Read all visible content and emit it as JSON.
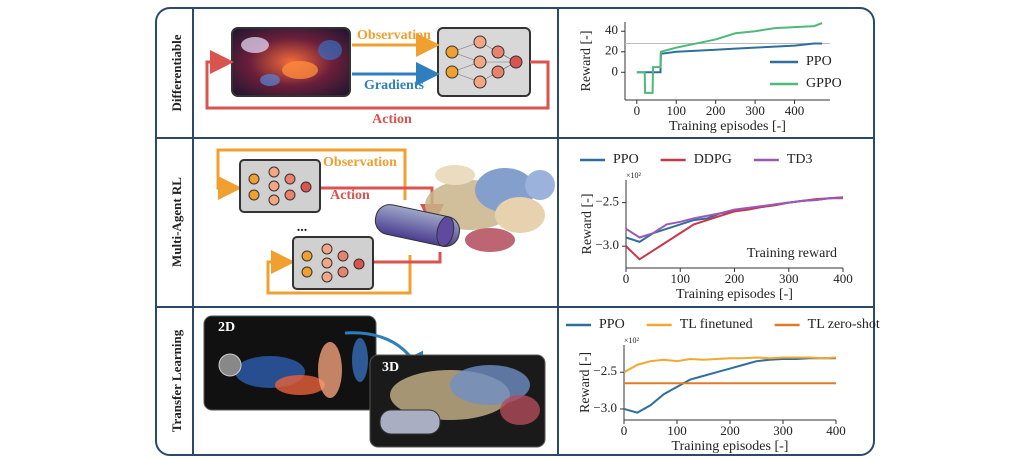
{
  "row_labels": [
    "Differentiable",
    "Multi-Agent RL",
    "Transfer Learning"
  ],
  "diagrams": {
    "differentiable": {
      "observation": "Observation",
      "gradients": "Gradients",
      "action": "Action"
    },
    "multi_agent": {
      "observation": "Observation",
      "action": "Action",
      "ellipsis": "..."
    },
    "transfer": {
      "source": "2D",
      "target": "3D"
    }
  },
  "chart_data": [
    {
      "type": "line",
      "xlabel": "Training episodes [-]",
      "ylabel": "Reward [-]",
      "xlim": [
        -30,
        490
      ],
      "ylim": [
        -27,
        49
      ],
      "xticks": [
        0,
        100,
        200,
        300,
        400
      ],
      "yticks": [
        0,
        20,
        40
      ],
      "hline": 28,
      "legend": "lower right",
      "x": [
        0,
        20,
        21,
        40,
        41,
        60,
        61,
        100,
        150,
        200,
        250,
        300,
        350,
        400,
        450,
        470
      ],
      "series": [
        {
          "name": "PPO",
          "color": "#2f6f9f",
          "values": [
            0,
            0,
            0,
            0,
            0,
            0,
            18,
            20,
            21,
            22,
            23,
            24,
            25,
            26,
            28,
            28
          ]
        },
        {
          "name": "GPPO",
          "color": "#4fb87a",
          "values": [
            0,
            0,
            -20,
            -20,
            5,
            5,
            20,
            24,
            28,
            32,
            38,
            40,
            43,
            44,
            45,
            48
          ]
        }
      ]
    },
    {
      "type": "line",
      "xlabel": "Training episodes [-]",
      "ylabel": "Reward [-]",
      "multiplier": "×10²",
      "annotation": "Training reward",
      "xlim": [
        0,
        400
      ],
      "ylim": [
        -3.25,
        -2.24
      ],
      "xticks": [
        0,
        100,
        200,
        300,
        400
      ],
      "yticks": [
        {
          "value": -3.0,
          "label": "−3.0"
        },
        {
          "value": -2.5,
          "label": "−2.5"
        }
      ],
      "legend": "top",
      "x": [
        0,
        25,
        50,
        75,
        100,
        125,
        150,
        175,
        200,
        225,
        250,
        275,
        300,
        325,
        350,
        375,
        400
      ],
      "series": [
        {
          "name": "PPO",
          "color": "#2f6f9f",
          "values": [
            -2.9,
            -2.95,
            -2.85,
            -2.8,
            -2.75,
            -2.7,
            -2.68,
            -2.62,
            -2.6,
            -2.57,
            -2.55,
            -2.52,
            -2.5,
            -2.48,
            -2.47,
            -2.45,
            -2.44
          ]
        },
        {
          "name": "DDPG",
          "color": "#c8374a",
          "values": [
            -3.0,
            -3.15,
            -3.05,
            -2.95,
            -2.85,
            -2.75,
            -2.7,
            -2.65,
            -2.6,
            -2.58,
            -2.55,
            -2.53,
            -2.5,
            -2.48,
            -2.46,
            -2.45,
            -2.44
          ]
        },
        {
          "name": "TD3",
          "color": "#9b59b6",
          "values": [
            -2.8,
            -2.9,
            -2.85,
            -2.75,
            -2.72,
            -2.68,
            -2.65,
            -2.62,
            -2.58,
            -2.56,
            -2.54,
            -2.52,
            -2.5,
            -2.48,
            -2.47,
            -2.45,
            -2.45
          ]
        }
      ]
    },
    {
      "type": "line",
      "xlabel": "Training episodes [-]",
      "ylabel": "Reward [-]",
      "multiplier": "×10²",
      "xlim": [
        0,
        400
      ],
      "ylim": [
        -3.15,
        -2.13
      ],
      "xticks": [
        0,
        100,
        200,
        300,
        400
      ],
      "yticks": [
        {
          "value": -3.0,
          "label": "−3.0"
        },
        {
          "value": -2.5,
          "label": "−2.5"
        }
      ],
      "legend": "top",
      "x": [
        0,
        25,
        50,
        75,
        100,
        125,
        150,
        175,
        200,
        225,
        250,
        275,
        300,
        325,
        350,
        375,
        400
      ],
      "series": [
        {
          "name": "PPO",
          "color": "#2f6f9f",
          "values": [
            -3.0,
            -3.05,
            -2.95,
            -2.8,
            -2.7,
            -2.6,
            -2.55,
            -2.5,
            -2.45,
            -2.4,
            -2.35,
            -2.33,
            -2.32,
            -2.32,
            -2.31,
            -2.31,
            -2.31
          ]
        },
        {
          "name": "TL finetuned",
          "color": "#f0a830",
          "values": [
            -2.5,
            -2.4,
            -2.35,
            -2.33,
            -2.35,
            -2.32,
            -2.33,
            -2.32,
            -2.31,
            -2.31,
            -2.3,
            -2.31,
            -2.3,
            -2.3,
            -2.3,
            -2.31,
            -2.3
          ]
        },
        {
          "name": "TL zero-shot",
          "color": "#e07b2a",
          "values": [
            -2.65,
            -2.65,
            -2.65,
            -2.65,
            -2.65,
            -2.65,
            -2.65,
            -2.65,
            -2.65,
            -2.65,
            -2.65,
            -2.65,
            -2.65,
            -2.65,
            -2.65,
            -2.65,
            -2.65
          ]
        }
      ]
    }
  ]
}
